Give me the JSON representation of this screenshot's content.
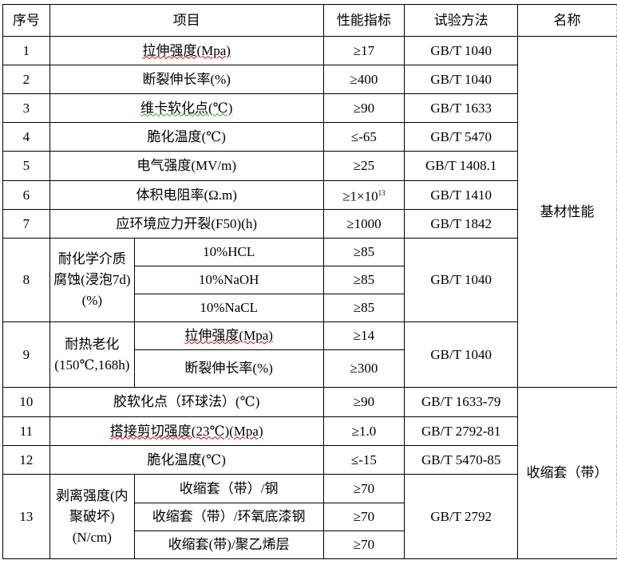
{
  "header": {
    "no": "序号",
    "item": "项目",
    "spec": "性能指标",
    "method": "试验方法",
    "name": "名称"
  },
  "groups": {
    "base": "基材性能",
    "sleeve": "收缩套（带）"
  },
  "rows": [
    {
      "no": "1",
      "item": "拉伸强度(Mpa)",
      "spec": "≥17",
      "method": "GB/T 1040"
    },
    {
      "no": "2",
      "item": "断裂伸长率(%)",
      "spec": "≥400",
      "method": "GB/T 1040"
    },
    {
      "no": "3",
      "item": "维卡软化点(℃)",
      "spec": "≥90",
      "method": "GB/T 1633"
    },
    {
      "no": "4",
      "item": "脆化温度(℃)",
      "spec": "≤-65",
      "method": "GB/T 5470"
    },
    {
      "no": "5",
      "item": "电气强度(MV/m)",
      "spec": "≥25",
      "method": "GB/T 1408.1"
    },
    {
      "no": "6",
      "item": "体积电阻率(Ω.m)",
      "spec": "≥1×10",
      "spec_exp": "13",
      "method": "GB/T 1410"
    },
    {
      "no": "7",
      "item": "应环境应力开裂(F50)(h)",
      "spec": "≥1000",
      "method": "GB/T 1842"
    },
    {
      "no": "8",
      "item": "耐化学介质腐蚀(浸泡7d)(%)",
      "method": "GB/T 1040",
      "sub": [
        {
          "item": "10%HCL",
          "spec": "≥85"
        },
        {
          "item": "10%NaOH",
          "spec": "≥85"
        },
        {
          "item": "10%NaCL",
          "spec": "≥85"
        }
      ]
    },
    {
      "no": "9",
      "item": "耐热老化(150℃,168h)",
      "method": "GB/T 1040",
      "sub": [
        {
          "item": "拉伸强度(Mpa)",
          "spec": "≥14"
        },
        {
          "item": "断裂伸长率(%)",
          "spec": "≥300"
        }
      ]
    },
    {
      "no": "10",
      "item": "胶软化点（环球法）(℃)",
      "spec": "≥90",
      "method": "GB/T 1633-79"
    },
    {
      "no": "11",
      "item": "搭接剪切强度(23℃)(Mpa)",
      "spec": "≥1.0",
      "method": "GB/T 2792-81"
    },
    {
      "no": "12",
      "item": "脆化温度(℃)",
      "spec": "≤-15",
      "method": "GB/T 5470-85"
    },
    {
      "no": "13",
      "item": "剥离强度(内聚破坏)(N/cm)",
      "method": "GB/T 2792",
      "sub": [
        {
          "item": "收缩套（带）/钢",
          "spec": "≥70"
        },
        {
          "item": "收缩套（带）/环氧底漆钢",
          "spec": "≥70"
        },
        {
          "item": "收缩套(带)/聚乙烯层",
          "spec": "≥70"
        }
      ]
    }
  ]
}
